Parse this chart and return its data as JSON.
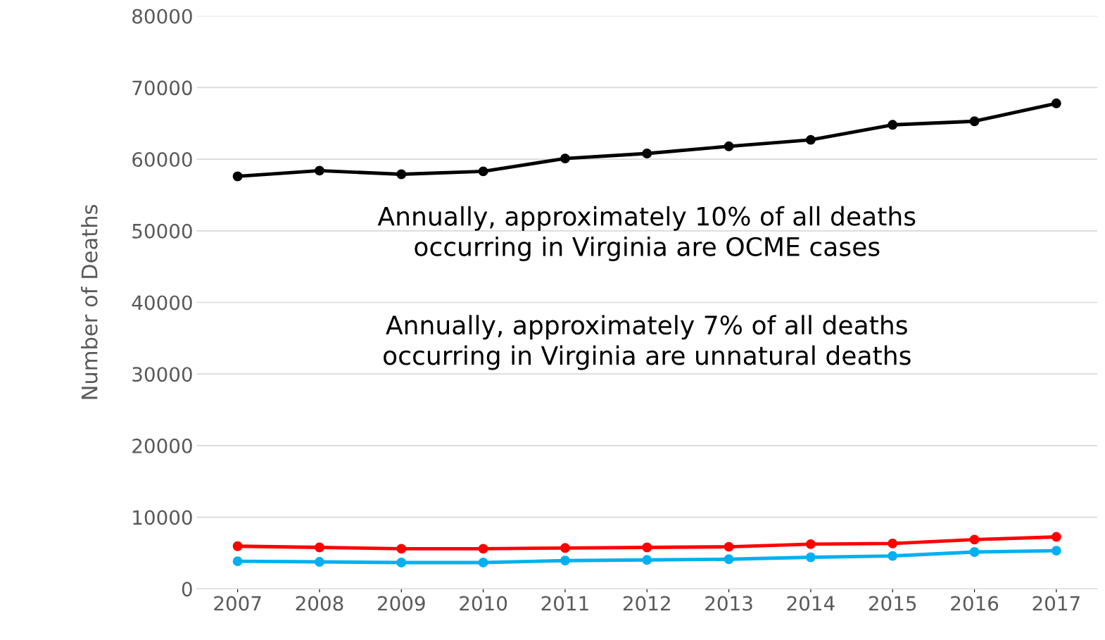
{
  "chart_data": {
    "type": "line",
    "ylabel": "Number of Deaths",
    "categories": [
      "2007",
      "2008",
      "2009",
      "2010",
      "2011",
      "2012",
      "2013",
      "2014",
      "2015",
      "2016",
      "2017"
    ],
    "series": [
      {
        "color": "#000000",
        "values": [
          57600,
          58400,
          57900,
          58300,
          60100,
          60800,
          61800,
          62700,
          64800,
          65300,
          67800
        ]
      },
      {
        "color": "#ff0000",
        "values": [
          5950,
          5780,
          5600,
          5600,
          5700,
          5780,
          5870,
          6240,
          6330,
          6870,
          7250
        ]
      },
      {
        "color": "#00b0f0",
        "values": [
          3850,
          3760,
          3670,
          3670,
          3940,
          4030,
          4130,
          4400,
          4590,
          5140,
          5320
        ]
      }
    ],
    "ylim": [
      0,
      80000
    ],
    "yticks": [
      0,
      10000,
      20000,
      30000,
      40000,
      50000,
      60000,
      70000,
      80000
    ],
    "grid": "y",
    "legend": false,
    "marker": "circle",
    "line_style": "solid",
    "annotations": [
      "Annually, approximately 10% of all deaths\noccurring in Virginia are OCME cases",
      "Annually, approximately 7% of all deaths\noccurring in Virginia are unnatural deaths"
    ]
  }
}
